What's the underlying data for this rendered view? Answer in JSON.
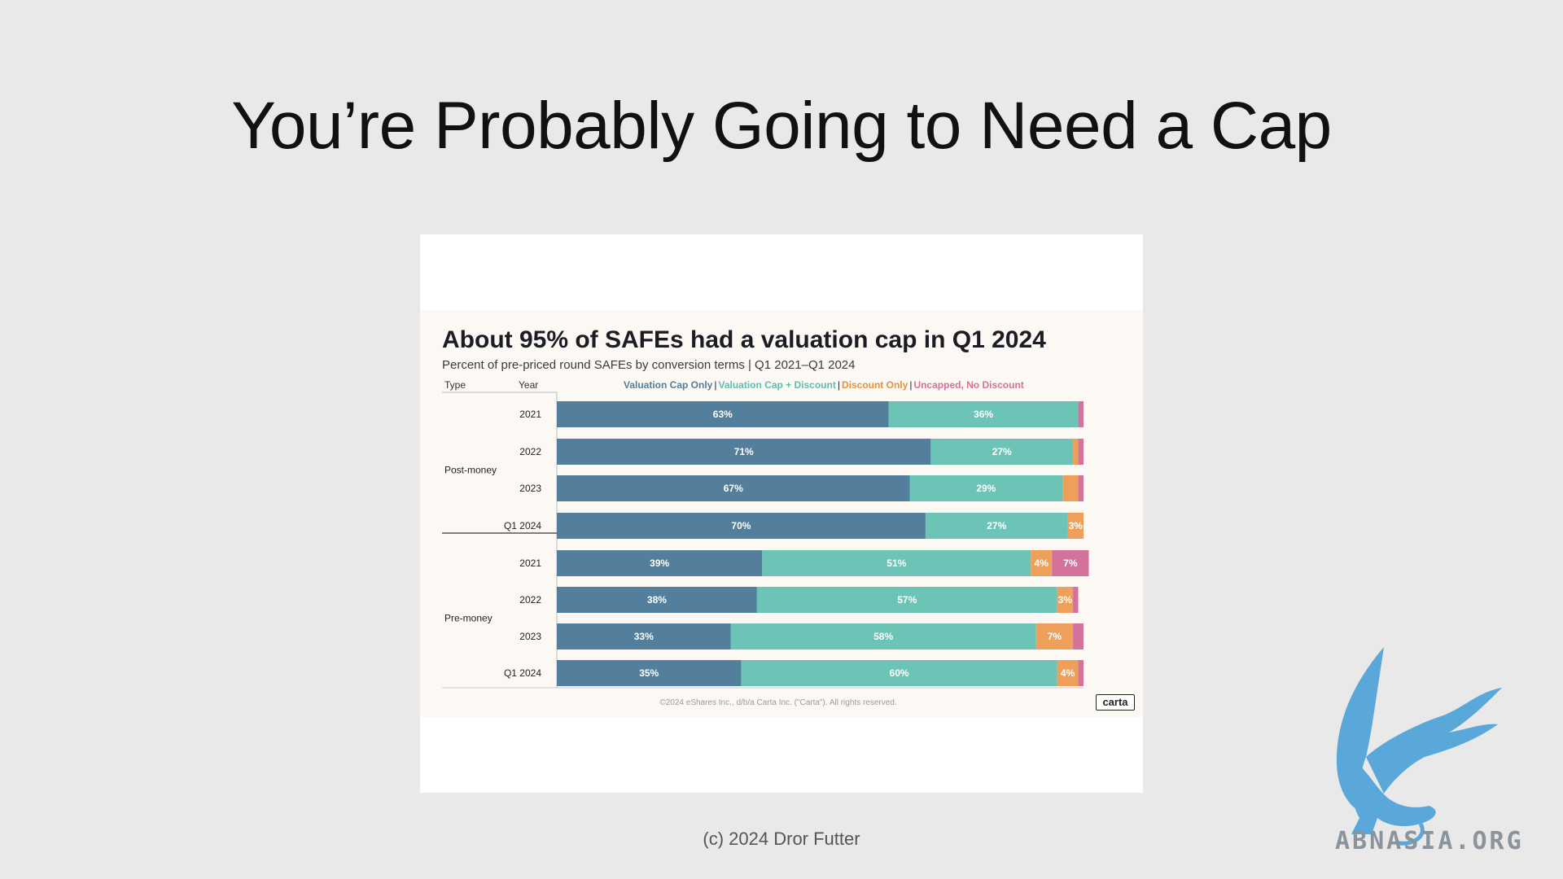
{
  "slide": {
    "title": "You’re Probably Going to Need a Cap",
    "footer": "(c) 2024 Dror Futter"
  },
  "watermark": {
    "text": "ABNASIA.ORG",
    "icon": "griffin-logo-icon"
  },
  "chart_data": {
    "type": "bar",
    "orientation": "horizontal-stacked",
    "title": "About 95% of SAFEs had a valuation cap in Q1 2024",
    "subtitle": "Percent of pre-priced round SAFEs by conversion terms | Q1 2021–Q1 2024",
    "column_headers": {
      "type": "Type",
      "year": "Year"
    },
    "groups": [
      {
        "name": "Post-money",
        "categories": [
          "2021",
          "2022",
          "2023",
          "Q1 2024"
        ]
      },
      {
        "name": "Pre-money",
        "categories": [
          "2021",
          "2022",
          "2023",
          "Q1 2024"
        ]
      }
    ],
    "series": [
      {
        "name": "Valuation Cap Only",
        "color": "#537f9c",
        "values": [
          63,
          71,
          67,
          70,
          39,
          38,
          33,
          35
        ],
        "labels": [
          "63%",
          "71%",
          "67%",
          "70%",
          "39%",
          "38%",
          "33%",
          "35%"
        ]
      },
      {
        "name": "Valuation Cap + Discount",
        "color": "#6cc4b6",
        "values": [
          36,
          27,
          29,
          27,
          51,
          57,
          58,
          60
        ],
        "labels": [
          "36%",
          "27%",
          "29%",
          "27%",
          "51%",
          "57%",
          "58%",
          "60%"
        ]
      },
      {
        "name": "Discount Only",
        "color": "#eea05a",
        "values": [
          0,
          1,
          3,
          3,
          4,
          3,
          7,
          4
        ],
        "labels": [
          "",
          "",
          "",
          "3%",
          "4%",
          "3%",
          "7%",
          "4%"
        ]
      },
      {
        "name": "Uncapped, No Discount",
        "color": "#d3739c",
        "values": [
          1,
          1,
          1,
          0,
          7,
          1,
          2,
          1
        ],
        "labels": [
          "",
          "",
          "",
          "",
          "7%",
          "",
          "",
          ""
        ]
      }
    ],
    "xlim": [
      0,
      100
    ],
    "grid": false,
    "legend_position": "top",
    "copyright": "©2024 eShares Inc., d/b/a Carta Inc. (\"Carta\"). All rights reserved.",
    "brand": "carta"
  }
}
